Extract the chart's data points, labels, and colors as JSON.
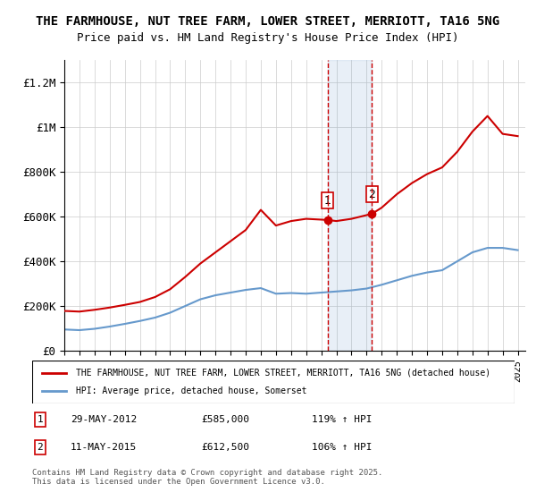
{
  "title_line1": "THE FARMHOUSE, NUT TREE FARM, LOWER STREET, MERRIOTT, TA16 5NG",
  "title_line2": "Price paid vs. HM Land Registry's House Price Index (HPI)",
  "ylabel_ticks": [
    "£0",
    "£200K",
    "£400K",
    "£600K",
    "£800K",
    "£1M",
    "£1.2M"
  ],
  "ytick_vals": [
    0,
    200000,
    400000,
    600000,
    800000,
    1000000,
    1200000
  ],
  "ylim": [
    0,
    1300000
  ],
  "xlim_start": 1995.0,
  "xlim_end": 2025.5,
  "red_line_color": "#cc0000",
  "blue_line_color": "#6699cc",
  "sale1_date": 2012.41,
  "sale1_price": 585000,
  "sale2_date": 2015.36,
  "sale2_price": 612500,
  "annotation1_label": "1",
  "annotation1_date": "29-MAY-2012",
  "annotation1_price": "£585,000",
  "annotation1_hpi": "119% ↑ HPI",
  "annotation2_label": "2",
  "annotation2_date": "11-MAY-2015",
  "annotation2_price": "£612,500",
  "annotation2_hpi": "106% ↑ HPI",
  "legend_label_red": "THE FARMHOUSE, NUT TREE FARM, LOWER STREET, MERRIOTT, TA16 5NG (detached house)",
  "legend_label_blue": "HPI: Average price, detached house, Somerset",
  "footnote": "Contains HM Land Registry data © Crown copyright and database right 2025.\nThis data is licensed under the Open Government Licence v3.0.",
  "red_x": [
    1995,
    1996,
    1997,
    1998,
    1999,
    2000,
    2001,
    2002,
    2003,
    2004,
    2005,
    2006,
    2007,
    2008,
    2009,
    2010,
    2011,
    2012.41,
    2013,
    2014,
    2015.36,
    2016,
    2017,
    2018,
    2019,
    2020,
    2021,
    2022,
    2023,
    2024,
    2025
  ],
  "red_y": [
    178000,
    175000,
    183000,
    193000,
    205000,
    218000,
    240000,
    275000,
    330000,
    390000,
    440000,
    490000,
    540000,
    630000,
    560000,
    580000,
    590000,
    585000,
    580000,
    590000,
    612500,
    640000,
    700000,
    750000,
    790000,
    820000,
    890000,
    980000,
    1050000,
    970000,
    960000
  ],
  "blue_x": [
    1995,
    1996,
    1997,
    1998,
    1999,
    2000,
    2001,
    2002,
    2003,
    2004,
    2005,
    2006,
    2007,
    2008,
    2009,
    2010,
    2011,
    2012,
    2013,
    2014,
    2015,
    2016,
    2017,
    2018,
    2019,
    2020,
    2021,
    2022,
    2023,
    2024,
    2025
  ],
  "blue_y": [
    95000,
    92000,
    98000,
    108000,
    120000,
    133000,
    148000,
    170000,
    200000,
    230000,
    248000,
    260000,
    272000,
    280000,
    255000,
    258000,
    255000,
    260000,
    265000,
    270000,
    278000,
    295000,
    315000,
    335000,
    350000,
    360000,
    400000,
    440000,
    460000,
    460000,
    450000
  ]
}
